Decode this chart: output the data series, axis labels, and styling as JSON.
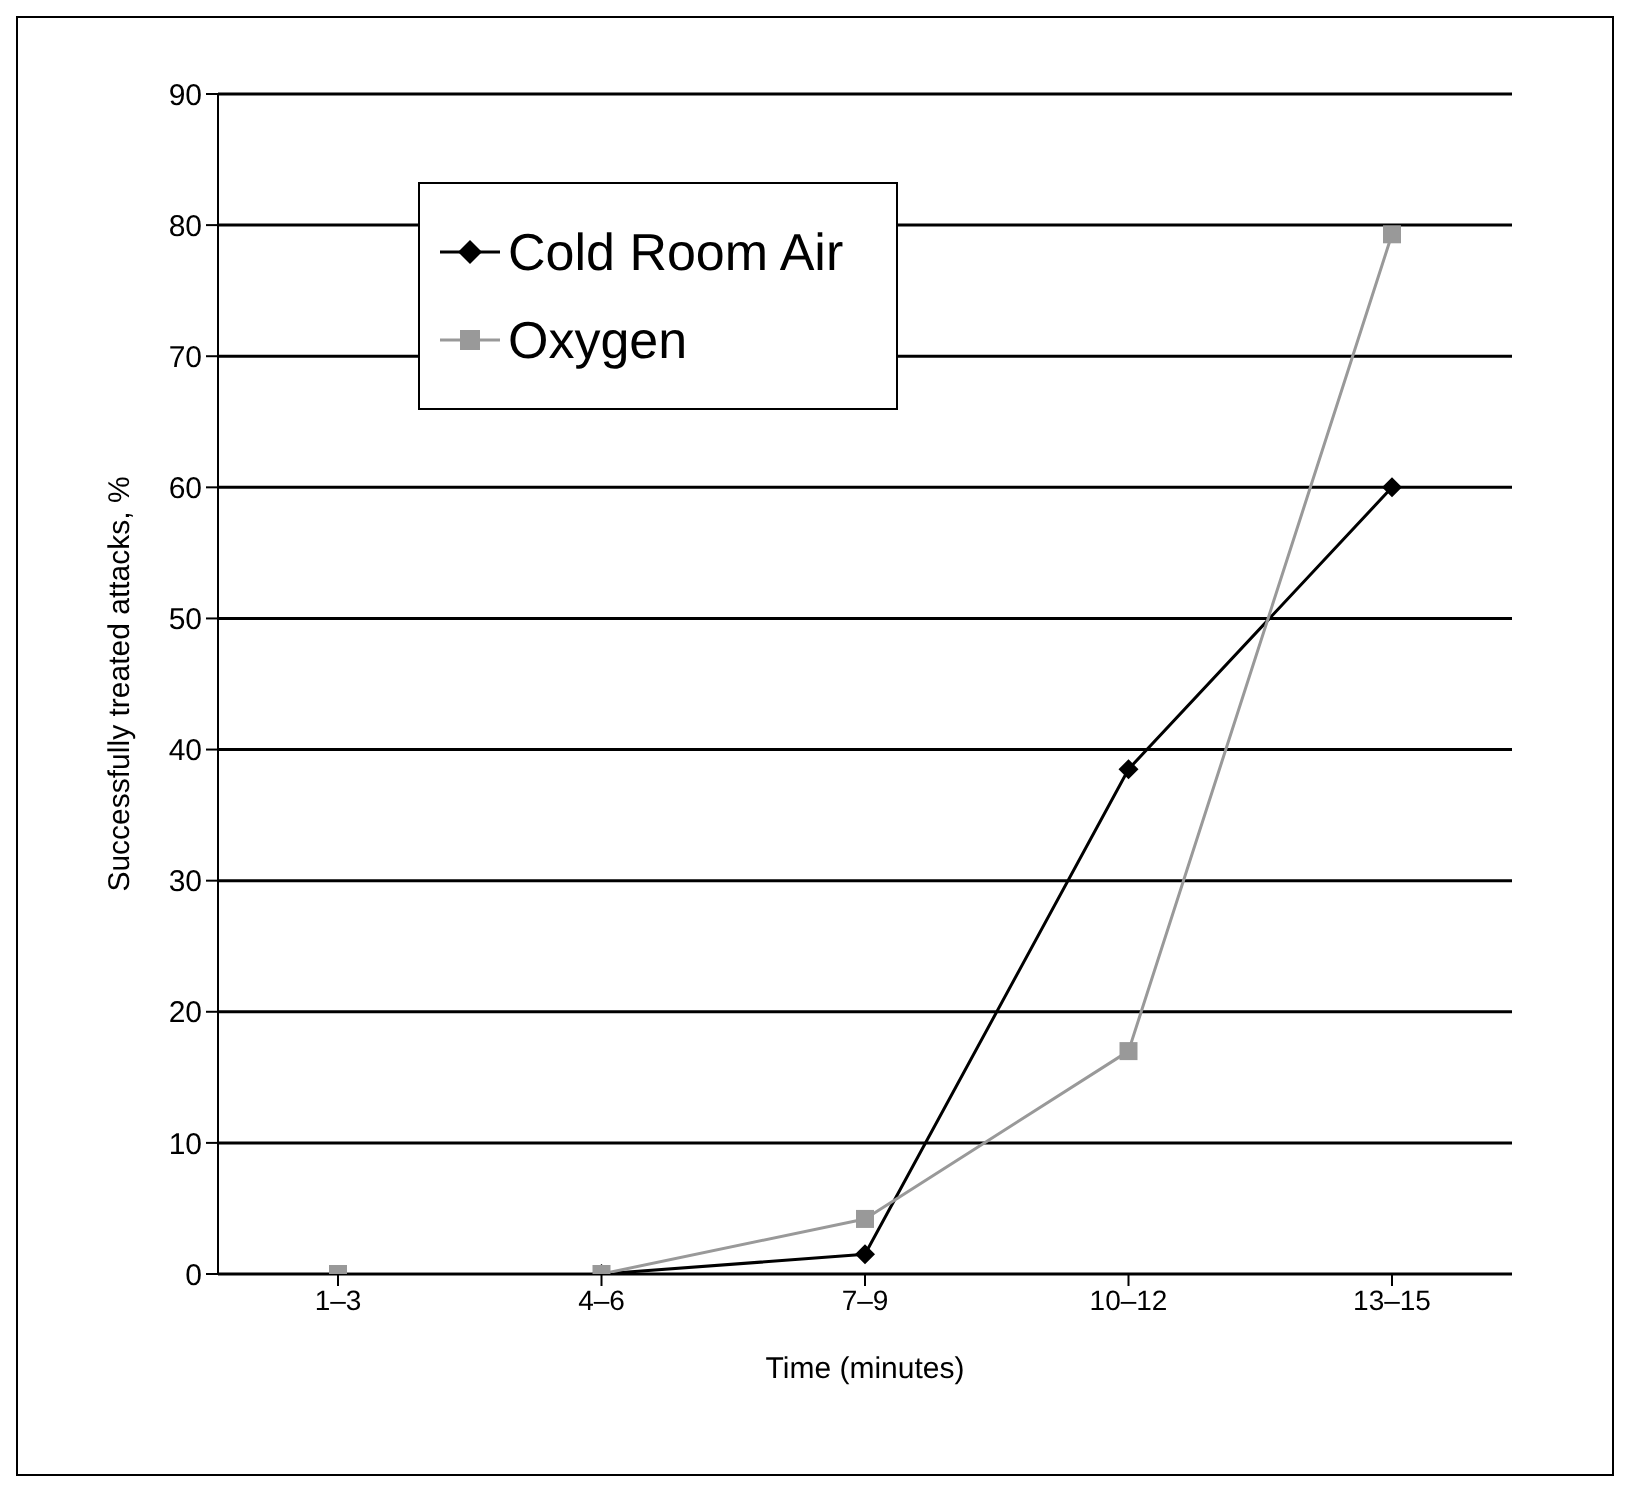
{
  "chart_data": {
    "type": "line",
    "xlabel": "Time (minutes)",
    "ylabel": "Successfully treated attacks, %",
    "categories": [
      "1–3",
      "4–6",
      "7–9",
      "10–12",
      "13–15"
    ],
    "series": [
      {
        "name": "Cold Room Air",
        "color": "#000000",
        "marker": "diamond",
        "values": [
          null,
          0,
          1.5,
          38.5,
          60
        ]
      },
      {
        "name": "Oxygen",
        "color": "#999999",
        "marker": "square",
        "values": [
          0,
          0,
          4.2,
          17,
          79.3
        ]
      }
    ],
    "ylim": [
      0,
      90
    ],
    "yticks": [
      0,
      10,
      20,
      30,
      40,
      50,
      60,
      70,
      80,
      90
    ],
    "grid": "y",
    "legend": "top left",
    "line_style": "solid"
  }
}
